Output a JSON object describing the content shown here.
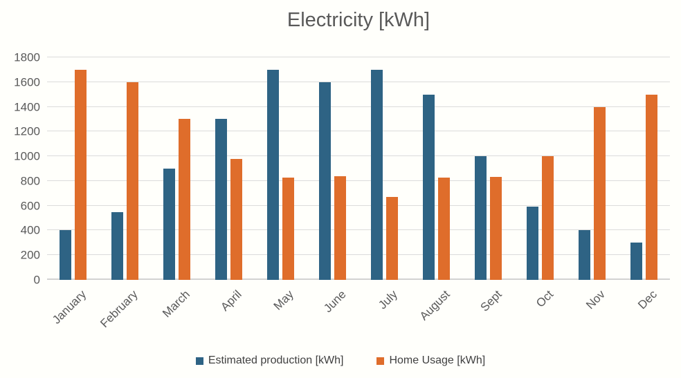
{
  "chart_data": {
    "type": "bar",
    "title": "Electricity [kWh]",
    "categories": [
      "January",
      "February",
      "March",
      "April",
      "May",
      "June",
      "July",
      "August",
      "Sept",
      "Oct",
      "Nov",
      "Dec"
    ],
    "series": [
      {
        "name": "Estimated production [kWh]",
        "color": "#2E6384",
        "values": [
          400,
          550,
          900,
          1300,
          1700,
          1600,
          1700,
          1500,
          1000,
          590,
          400,
          300
        ]
      },
      {
        "name": "Home Usage [kWh]",
        "color": "#DF6D2B",
        "values": [
          1700,
          1600,
          1300,
          980,
          830,
          840,
          670,
          830,
          835,
          1000,
          1400,
          1500
        ]
      }
    ],
    "ylim": [
      0,
      1800
    ],
    "ytick_step": 200,
    "grid": true,
    "legend_position": "bottom",
    "xlabel": "",
    "ylabel": ""
  },
  "style": {
    "background": "#FFFFFB",
    "grid_color": "#DBDBDB",
    "axis_color": "#D2D2D2",
    "tick_text_color": "#595959",
    "title_color": "#595959",
    "legend_text_color": "#404040"
  }
}
